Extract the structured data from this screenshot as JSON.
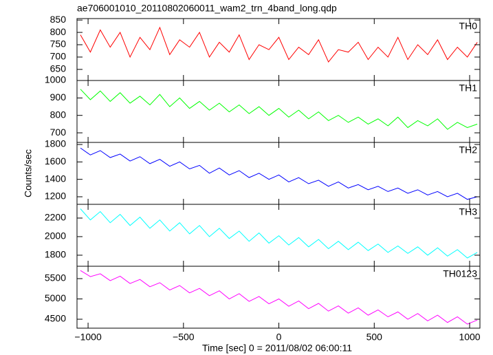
{
  "chart_data": [
    {
      "type": "line",
      "title": "ae706001010_20110802060011_wam2_trn_4band_long.qdp",
      "x": [
        -1040,
        -988,
        -936,
        -884,
        -832,
        -780,
        -728,
        -676,
        -624,
        -572,
        -520,
        -468,
        -416,
        -364,
        -312,
        -260,
        -208,
        -156,
        -104,
        -52,
        0,
        52,
        104,
        156,
        208,
        260,
        312,
        364,
        416,
        468,
        520,
        572,
        624,
        676,
        728,
        780,
        832,
        884,
        936,
        988,
        1040
      ],
      "series": [
        {
          "name": "TH0",
          "color": "#ff0000",
          "values": [
            790,
            720,
            810,
            740,
            800,
            700,
            780,
            730,
            820,
            710,
            770,
            740,
            800,
            700,
            760,
            720,
            790,
            690,
            750,
            730,
            780,
            690,
            740,
            710,
            770,
            680,
            730,
            720,
            760,
            690,
            740,
            700,
            780,
            690,
            750,
            710,
            770,
            690,
            740,
            700,
            760
          ]
        }
      ],
      "xlim": [
        -1058,
        1054
      ],
      "xticks": [
        -1000,
        -500,
        0,
        500,
        1000
      ],
      "ylim": [
        605,
        856
      ],
      "yticks": [
        650,
        700,
        750,
        800,
        850
      ]
    },
    {
      "type": "line",
      "x": [
        -1040,
        -988,
        -936,
        -884,
        -832,
        -780,
        -728,
        -676,
        -624,
        -572,
        -520,
        -468,
        -416,
        -364,
        -312,
        -260,
        -208,
        -156,
        -104,
        -52,
        0,
        52,
        104,
        156,
        208,
        260,
        312,
        364,
        416,
        468,
        520,
        572,
        624,
        676,
        728,
        780,
        832,
        884,
        936,
        988,
        1040
      ],
      "series": [
        {
          "name": "TH1",
          "color": "#00ff00",
          "values": [
            950,
            890,
            940,
            880,
            930,
            870,
            910,
            860,
            920,
            850,
            900,
            840,
            880,
            830,
            870,
            820,
            860,
            810,
            850,
            800,
            840,
            790,
            830,
            780,
            820,
            770,
            800,
            760,
            790,
            750,
            780,
            740,
            790,
            730,
            770,
            740,
            780,
            720,
            760,
            730,
            750
          ]
        }
      ],
      "xlim": [
        -1058,
        1054
      ],
      "xticks": [
        -1000,
        -500,
        0,
        500,
        1000
      ],
      "ylim": [
        645,
        1000
      ],
      "yticks": [
        700,
        800,
        900,
        1000
      ]
    },
    {
      "type": "line",
      "ylabel": "Counts/sec",
      "x": [
        -1040,
        -988,
        -936,
        -884,
        -832,
        -780,
        -728,
        -676,
        -624,
        -572,
        -520,
        -468,
        -416,
        -364,
        -312,
        -260,
        -208,
        -156,
        -104,
        -52,
        0,
        52,
        104,
        156,
        208,
        260,
        312,
        364,
        416,
        468,
        520,
        572,
        624,
        676,
        728,
        780,
        832,
        884,
        936,
        988,
        1040
      ],
      "series": [
        {
          "name": "TH2",
          "color": "#0000ff",
          "values": [
            1760,
            1680,
            1730,
            1650,
            1690,
            1610,
            1660,
            1580,
            1630,
            1550,
            1600,
            1520,
            1560,
            1470,
            1530,
            1450,
            1500,
            1420,
            1470,
            1400,
            1450,
            1370,
            1420,
            1350,
            1390,
            1320,
            1370,
            1300,
            1340,
            1280,
            1320,
            1260,
            1300,
            1240,
            1280,
            1220,
            1260,
            1200,
            1240,
            1170,
            1200
          ]
        }
      ],
      "xlim": [
        -1058,
        1054
      ],
      "xticks": [
        -1000,
        -500,
        0,
        500,
        1000
      ],
      "ylim": [
        1113,
        1824
      ],
      "yticks": [
        1200,
        1400,
        1600,
        1800
      ]
    },
    {
      "type": "line",
      "x": [
        -1040,
        -988,
        -936,
        -884,
        -832,
        -780,
        -728,
        -676,
        -624,
        -572,
        -520,
        -468,
        -416,
        -364,
        -312,
        -260,
        -208,
        -156,
        -104,
        -52,
        0,
        52,
        104,
        156,
        208,
        260,
        312,
        364,
        416,
        468,
        520,
        572,
        624,
        676,
        728,
        780,
        832,
        884,
        936,
        988,
        1040
      ],
      "series": [
        {
          "name": "TH3",
          "color": "#00ffff",
          "values": [
            2300,
            2180,
            2270,
            2150,
            2240,
            2120,
            2210,
            2090,
            2180,
            2060,
            2150,
            2030,
            2120,
            2000,
            2090,
            1980,
            2060,
            1950,
            2040,
            1930,
            2010,
            1910,
            1990,
            1890,
            1970,
            1870,
            1950,
            1860,
            1940,
            1850,
            1920,
            1830,
            1900,
            1820,
            1890,
            1800,
            1880,
            1790,
            1860,
            1770,
            1830
          ]
        }
      ],
      "xlim": [
        -1058,
        1054
      ],
      "xticks": [
        -1000,
        -500,
        0,
        500,
        1000
      ],
      "ylim": [
        1681,
        2348
      ],
      "yticks": [
        1800,
        2000,
        2200
      ]
    },
    {
      "type": "line",
      "xlabel": "Time [sec] 0 = 2011/08/02 06:00:11",
      "x": [
        -1040,
        -988,
        -936,
        -884,
        -832,
        -780,
        -728,
        -676,
        -624,
        -572,
        -520,
        -468,
        -416,
        -364,
        -312,
        -260,
        -208,
        -156,
        -104,
        -52,
        0,
        52,
        104,
        156,
        208,
        260,
        312,
        364,
        416,
        468,
        520,
        572,
        624,
        676,
        728,
        780,
        832,
        884,
        936,
        988,
        1040
      ],
      "series": [
        {
          "name": "TH0123",
          "color": "#ff00ff",
          "values": [
            5700,
            5550,
            5620,
            5450,
            5560,
            5380,
            5480,
            5300,
            5400,
            5220,
            5330,
            5150,
            5260,
            5080,
            5200,
            5000,
            5130,
            4940,
            5060,
            4880,
            5000,
            4820,
            4950,
            4760,
            4890,
            4700,
            4830,
            4650,
            4780,
            4600,
            4730,
            4560,
            4680,
            4500,
            4640,
            4460,
            4600,
            4420,
            4560,
            4380,
            4480
          ]
        }
      ],
      "xlim": [
        -1058,
        1054
      ],
      "xticks": [
        {
          "value": -1000,
          "label": "−1000"
        },
        {
          "value": -500,
          "label": "−500"
        },
        0,
        500,
        1000
      ],
      "ylim": [
        4280,
        5805
      ],
      "yticks": [
        4500,
        5000,
        5500
      ]
    }
  ]
}
